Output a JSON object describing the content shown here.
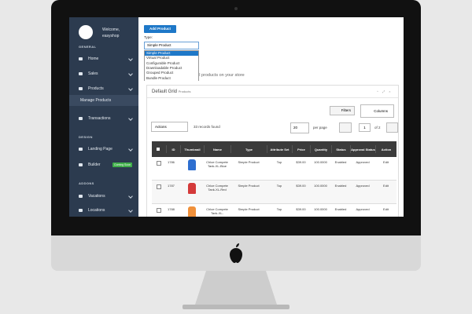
{
  "sidebar": {
    "welcome": "Welcome,",
    "username": "easyshop",
    "general": "GENERAL",
    "home": "Home",
    "sales": "Sales",
    "products": "Products",
    "manage_products": "Manage Products",
    "transactions": "Transactions",
    "design": "DESIGN",
    "landing_page": "Landing Page",
    "builder": "Builder",
    "coming_soon": "Coming Soon",
    "addons": "ADDONS",
    "vacations": "Vacations",
    "locations": "Locations"
  },
  "toolbar": {
    "add_product": "Add Product",
    "type_label": "Type:",
    "selected_type": "Simple Product",
    "type_options": [
      "Simple Product",
      "Virtual Product",
      "Configurable Product",
      "Downloadable Product",
      "Grouped Product",
      "Bundle Product"
    ],
    "subtitle": "ll products on your store"
  },
  "grid": {
    "title": "Default Grid",
    "subtitle": "Products",
    "filters": "Filters",
    "columns": "Columns",
    "actions": "Actions",
    "records": "33 records found",
    "page_size": "20",
    "per_page": "per page",
    "page": "1",
    "of_pages": "of 2",
    "headers": [
      "ID",
      "Thumbnail",
      "Name",
      "Type",
      "Attribute Set",
      "Price",
      "Quantity",
      "Status",
      "Approval Status",
      "Action"
    ],
    "rows": [
      [
        "1786",
        "Chloe Compete Tank-XL-Blue",
        "Simple Product",
        "Top",
        "$39.00",
        "100.0000",
        "Enabled",
        "Approved",
        "Edit"
      ],
      [
        "1787",
        "Chloe Compete Tank-XL-Red",
        "Simple Product",
        "Top",
        "$39.00",
        "100.0000",
        "Enabled",
        "Approved",
        "Edit"
      ],
      [
        "1788",
        "Chloe Compete Tank-XL-",
        "Simple Product",
        "Top",
        "$39.00",
        "100.0000",
        "Enabled",
        "Approved",
        "Edit"
      ]
    ]
  }
}
